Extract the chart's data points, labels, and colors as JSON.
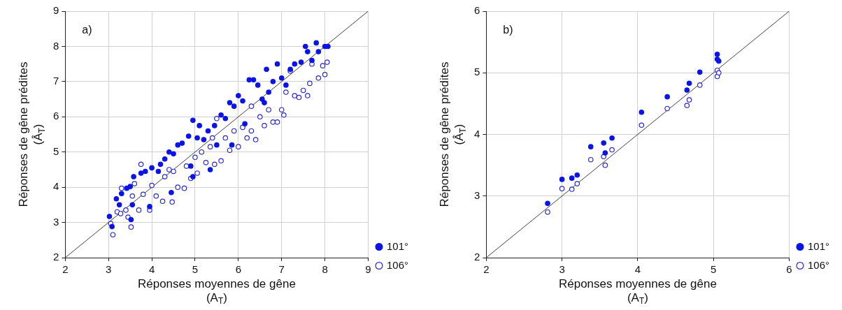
{
  "chart_data": [
    {
      "type": "scatter",
      "xlabel": "Réponses moyennes de gêne\n(A$_{T}$)",
      "ylabel": "Réponses de gêne prédites\n(Â$_{T}$)",
      "annotations": [
        "a)"
      ],
      "xlim": [
        2,
        9
      ],
      "ylim": [
        2,
        9
      ],
      "xticks": [
        2,
        3,
        4,
        5,
        6,
        7,
        8,
        9
      ],
      "yticks": [
        2,
        3,
        4,
        5,
        6,
        7,
        8,
        9
      ],
      "grid": true,
      "legend": "bottom right",
      "series": [
        {
          "name": "101°",
          "color": "#0a14e6",
          "marker": "circle",
          "x": [
            3.02,
            3.08,
            3.18,
            3.25,
            3.3,
            3.42,
            3.5,
            3.52,
            3.55,
            3.58,
            3.75,
            3.85,
            3.95,
            4.0,
            4.15,
            4.2,
            4.3,
            4.4,
            4.45,
            4.5,
            4.6,
            4.7,
            4.85,
            4.95,
            4.95,
            5.05,
            5.1,
            5.2,
            5.3,
            5.35,
            5.45,
            5.5,
            5.6,
            5.7,
            5.8,
            5.9,
            6.0,
            6.1,
            6.15,
            6.25,
            6.35,
            6.45,
            6.55,
            6.65,
            6.7,
            6.8,
            6.9,
            7.0,
            7.1,
            7.2,
            7.3,
            7.45,
            7.55,
            7.6,
            7.7,
            7.8,
            7.85,
            8.0,
            8.07,
            6.6,
            5.85,
            4.9
          ],
          "values": [
            3.17,
            2.88,
            3.67,
            3.5,
            3.82,
            3.97,
            4.02,
            3.08,
            3.5,
            4.3,
            4.4,
            4.45,
            3.45,
            4.55,
            4.45,
            4.65,
            4.8,
            5.0,
            3.85,
            4.95,
            5.2,
            5.25,
            5.45,
            5.9,
            4.3,
            5.4,
            5.75,
            5.35,
            5.6,
            4.5,
            5.75,
            5.2,
            6.05,
            5.95,
            6.4,
            6.3,
            6.6,
            6.45,
            5.8,
            7.05,
            7.05,
            6.9,
            6.5,
            7.35,
            6.7,
            7.0,
            7.5,
            7.1,
            6.9,
            7.35,
            7.5,
            7.55,
            8.0,
            7.85,
            7.6,
            8.1,
            7.85,
            8.0,
            8.0,
            6.4,
            5.2,
            4.6
          ]
        },
        {
          "name": "106°",
          "color": "#2a2ac8",
          "marker": "circle-open",
          "x": [
            3.05,
            3.1,
            3.2,
            3.28,
            3.3,
            3.4,
            3.45,
            3.52,
            3.55,
            3.6,
            3.7,
            3.75,
            3.8,
            3.95,
            4.0,
            4.1,
            4.25,
            4.3,
            4.47,
            4.5,
            4.6,
            4.75,
            4.8,
            4.9,
            5.0,
            5.05,
            5.15,
            5.25,
            5.35,
            5.45,
            5.5,
            5.6,
            5.7,
            5.8,
            5.9,
            6.0,
            6.1,
            6.2,
            6.3,
            6.4,
            6.5,
            6.6,
            6.7,
            6.8,
            6.9,
            7.0,
            7.05,
            7.1,
            7.2,
            7.3,
            7.4,
            7.5,
            7.6,
            7.65,
            7.7,
            7.85,
            7.95,
            8.0,
            8.05,
            6.3,
            5.4,
            4.4
          ],
          "values": [
            2.97,
            2.65,
            3.3,
            3.25,
            3.97,
            3.35,
            3.15,
            2.87,
            3.75,
            4.1,
            3.35,
            4.65,
            3.8,
            3.35,
            4.05,
            3.75,
            3.6,
            4.3,
            3.58,
            4.45,
            4.0,
            3.97,
            4.6,
            4.25,
            4.85,
            4.4,
            5.0,
            4.7,
            5.15,
            4.65,
            5.95,
            4.75,
            5.4,
            5.05,
            5.6,
            5.15,
            5.7,
            5.4,
            5.6,
            5.35,
            6.0,
            5.75,
            6.2,
            5.85,
            5.85,
            6.2,
            6.05,
            6.7,
            7.3,
            6.6,
            6.55,
            6.75,
            6.6,
            6.95,
            7.5,
            7.1,
            7.45,
            7.2,
            7.55,
            6.3,
            5.4,
            4.5
          ]
        },
        {
          "type": "line",
          "color": "#404040",
          "marker": "none",
          "x": [
            2,
            9
          ],
          "values": [
            2,
            9
          ]
        }
      ]
    },
    {
      "type": "scatter",
      "xlabel": "Réponses moyennes de gêne\n(A$_{T}$)",
      "ylabel": "Réponses de gêne prédites\n(Â$_{T}$)",
      "annotations": [
        "b)"
      ],
      "xlim": [
        2,
        6
      ],
      "ylim": [
        2,
        6
      ],
      "xticks": [
        2,
        3,
        4,
        5,
        6
      ],
      "yticks": [
        2,
        3,
        4,
        5,
        6
      ],
      "grid": true,
      "legend": "bottom right",
      "series": [
        {
          "name": "101°",
          "color": "#0a14e6",
          "marker": "circle",
          "x": [
            2.81,
            3.0,
            3.13,
            3.2,
            3.38,
            3.55,
            3.57,
            3.66,
            4.05,
            4.39,
            4.65,
            4.68,
            4.82,
            5.05,
            5.05,
            5.07
          ],
          "values": [
            2.88,
            3.27,
            3.29,
            3.34,
            3.8,
            3.86,
            3.7,
            3.94,
            4.36,
            4.61,
            4.72,
            4.83,
            5.01,
            5.3,
            5.22,
            5.19
          ]
        },
        {
          "name": "106°",
          "color": "#2a2ac8",
          "marker": "circle-open",
          "x": [
            2.81,
            3.0,
            3.13,
            3.2,
            3.38,
            3.55,
            3.57,
            3.66,
            4.05,
            4.39,
            4.65,
            4.68,
            4.82,
            5.05,
            5.05,
            5.07
          ],
          "values": [
            2.74,
            3.12,
            3.11,
            3.2,
            3.59,
            3.64,
            3.5,
            3.75,
            4.15,
            4.42,
            4.47,
            4.56,
            4.8,
            5.04,
            4.94,
            5.0
          ]
        },
        {
          "type": "line",
          "color": "#404040",
          "marker": "none",
          "x": [
            2,
            6
          ],
          "values": [
            2,
            6
          ]
        }
      ]
    }
  ]
}
